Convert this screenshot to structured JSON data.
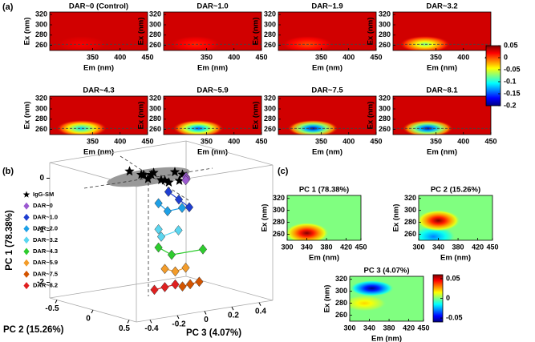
{
  "panel_labels": [
    "(a)",
    "(b)",
    "(c)"
  ],
  "chart_data": [
    {
      "type": "heatmap",
      "title": "DAR~0 (Control)",
      "xlabel": "Em (nm)",
      "ylabel": "Ex (nm)",
      "xlim": [
        272,
        450
      ],
      "ylim": [
        250,
        325
      ],
      "xticks": [
        350,
        400,
        450
      ],
      "yticks": [
        320,
        300,
        280,
        260
      ],
      "clim": [
        -0.2,
        0.05
      ],
      "background": 0.03,
      "hline": 262,
      "features": [
        {
          "x": 330,
          "y": 262,
          "value": 0.02
        }
      ]
    },
    {
      "type": "heatmap",
      "title": "DAR~1.0",
      "xlabel": "Em (nm)",
      "ylabel": "Ex (nm)",
      "xlim": [
        272,
        450
      ],
      "ylim": [
        250,
        325
      ],
      "xticks": [
        350,
        400,
        450
      ],
      "yticks": [
        320,
        300,
        280,
        260
      ],
      "clim": [
        -0.2,
        0.05
      ],
      "background": 0.03,
      "hline": 262,
      "features": [
        {
          "x": 330,
          "y": 262,
          "value": 0.01
        }
      ]
    },
    {
      "type": "heatmap",
      "title": "DAR~1.9",
      "xlabel": "Em (nm)",
      "ylabel": "Ex (nm)",
      "xlim": [
        272,
        450
      ],
      "ylim": [
        250,
        325
      ],
      "xticks": [
        350,
        400,
        450
      ],
      "yticks": [
        320,
        300,
        280,
        260
      ],
      "clim": [
        -0.2,
        0.05
      ],
      "background": 0.03,
      "hline": 262,
      "features": [
        {
          "x": 325,
          "y": 262,
          "value": 0.0
        }
      ]
    },
    {
      "type": "heatmap",
      "title": "DAR~3.2",
      "xlabel": "Em (nm)",
      "ylabel": "Ex (nm)",
      "xlim": [
        272,
        450
      ],
      "ylim": [
        250,
        325
      ],
      "xticks": [
        350,
        400,
        450
      ],
      "yticks": [
        320,
        300,
        280,
        260
      ],
      "clim": [
        -0.2,
        0.05
      ],
      "background": 0.03,
      "hline": 262,
      "features": [
        {
          "x": 330,
          "y": 262,
          "value": -0.08
        }
      ]
    },
    {
      "type": "heatmap",
      "title": "DAR~4.3",
      "xlabel": "Em (nm)",
      "ylabel": "Ex (nm)",
      "xlim": [
        272,
        450
      ],
      "ylim": [
        250,
        325
      ],
      "xticks": [
        350,
        400,
        450
      ],
      "yticks": [
        320,
        300,
        280,
        260
      ],
      "clim": [
        -0.2,
        0.05
      ],
      "background": 0.03,
      "hline": 262,
      "features": [
        {
          "x": 330,
          "y": 262,
          "value": -0.12
        }
      ]
    },
    {
      "type": "heatmap",
      "title": "DAR~5.9",
      "xlabel": "Em (nm)",
      "ylabel": "Ex (nm)",
      "xlim": [
        272,
        450
      ],
      "ylim": [
        250,
        325
      ],
      "xticks": [
        350,
        400,
        450
      ],
      "yticks": [
        320,
        300,
        280,
        260
      ],
      "clim": [
        -0.2,
        0.05
      ],
      "background": 0.03,
      "hline": 262,
      "features": [
        {
          "x": 335,
          "y": 262,
          "value": -0.15
        }
      ]
    },
    {
      "type": "heatmap",
      "title": "DAR~7.5",
      "xlabel": "Em (nm)",
      "ylabel": "Ex (nm)",
      "xlim": [
        272,
        450
      ],
      "ylim": [
        250,
        325
      ],
      "xticks": [
        350,
        400,
        450
      ],
      "yticks": [
        320,
        300,
        280,
        260
      ],
      "clim": [
        -0.2,
        0.05
      ],
      "background": 0.03,
      "hline": 262,
      "features": [
        {
          "x": 335,
          "y": 262,
          "value": -0.19
        }
      ]
    },
    {
      "type": "heatmap",
      "title": "DAR~8.1",
      "xlabel": "Em (nm)",
      "ylabel": "Ex (nm)",
      "xlim": [
        272,
        450
      ],
      "ylim": [
        250,
        325
      ],
      "xticks": [
        350,
        400,
        450
      ],
      "yticks": [
        320,
        300,
        280,
        260
      ],
      "clim": [
        -0.2,
        0.05
      ],
      "background": 0.03,
      "hline": 262,
      "features": [
        {
          "x": 335,
          "y": 262,
          "value": -0.19
        }
      ]
    },
    {
      "type": "colorbar",
      "clim": [
        -0.2,
        0.05
      ],
      "ticks": [
        0.05,
        0,
        -0.05,
        -0.1,
        -0.15,
        -0.2
      ]
    },
    {
      "type": "scatter3d",
      "pc1_label": "PC 1 (78.38%)",
      "pc2_label": "PC 2 (15.26%)",
      "pc3_label": "PC 3 (4.07%)",
      "pc1lim": [
        -2.3,
        0.3
      ],
      "pc2lim": [
        -0.6,
        0.6
      ],
      "pc3lim": [
        -0.5,
        0.5
      ],
      "pc1ticks": [
        0,
        -1,
        -2
      ],
      "pc2ticks": [
        -0.5,
        0,
        0.5
      ],
      "pc3ticks": [
        -0.4,
        -0.2,
        0,
        0.2,
        0.4
      ],
      "series": [
        {
          "name": "IgG-SM",
          "color": "#000000",
          "marker": "star",
          "values": [
            0.1,
            0.05,
            0.12,
            0.0,
            0.08,
            0.15,
            0.03,
            0.1,
            -0.02,
            0.06,
            0.11,
            0.04
          ],
          "pc2": [
            -0.25,
            -0.15,
            -0.05,
            0.05,
            0.15,
            0.2,
            -0.2,
            0.0,
            0.1,
            -0.1,
            0.1,
            0.2
          ],
          "pc3": [
            -0.1,
            -0.05,
            -0.12,
            0.0,
            -0.08,
            0.05,
            0.05,
            0.1,
            0.08,
            -0.02,
            -0.15,
            -0.05
          ]
        },
        {
          "name": "DAR~0",
          "color": "#9b59d0",
          "marker": "diamond",
          "values": [
            0.12,
            0.05,
            0.0
          ],
          "pc2": [
            0.25,
            0.2,
            0.15
          ],
          "pc3": [
            0.05,
            0.08,
            0.1
          ]
        },
        {
          "name": "DAR~1.0",
          "color": "#1f3fd1",
          "marker": "diamond",
          "values": [
            -0.2,
            -0.35,
            -0.5
          ],
          "pc2": [
            0.1,
            0.15,
            0.2
          ],
          "pc3": [
            0.0,
            0.05,
            0.1
          ]
        },
        {
          "name": "DAR~2.0",
          "color": "#1ea0e6",
          "marker": "diamond",
          "values": [
            -0.45,
            -0.6,
            -0.55
          ],
          "pc2": [
            0.0,
            0.05,
            0.1
          ],
          "pc3": [
            -0.02,
            0.02,
            0.1
          ]
        },
        {
          "name": "DAR~3.2",
          "color": "#5ad6f0",
          "marker": "diamond",
          "values": [
            -0.95,
            -1.1,
            -1.0
          ],
          "pc2": [
            0.0,
            0.0,
            0.05
          ],
          "pc3": [
            -0.02,
            0.0,
            0.1
          ]
        },
        {
          "name": "DAR~4.3",
          "color": "#2ecc2e",
          "marker": "diamond",
          "values": [
            -1.3,
            -1.45,
            -1.35
          ],
          "pc2": [
            0.0,
            0.05,
            0.2
          ],
          "pc3": [
            -0.02,
            0.05,
            0.2
          ]
        },
        {
          "name": "DAR~5.9",
          "color": "#f39c2a",
          "marker": "diamond",
          "values": [
            -1.7,
            -1.75,
            -1.68
          ],
          "pc2": [
            0.05,
            0.1,
            0.15
          ],
          "pc3": [
            0.0,
            0.05,
            0.1
          ]
        },
        {
          "name": "DAR~7.5",
          "color": "#d35400",
          "marker": "diamond",
          "values": [
            -2.0,
            -1.95,
            -1.9
          ],
          "pc2": [
            0.2,
            0.25,
            0.3
          ],
          "pc3": [
            0.05,
            0.08,
            0.12
          ]
        },
        {
          "name": "DAR~8.2",
          "color": "#e01f1f",
          "marker": "diamond",
          "values": [
            -2.1,
            -2.05,
            -2.0
          ],
          "pc2": [
            0.0,
            0.05,
            0.1
          ],
          "pc3": [
            -0.05,
            0.0,
            0.05
          ]
        }
      ]
    },
    {
      "type": "heatmap",
      "title": "PC 1 (78.38%)",
      "xlabel": "Em (nm)",
      "ylabel": "Ex (nm)",
      "xlim": [
        300,
        450
      ],
      "ylim": [
        250,
        325
      ],
      "xticks": [
        300,
        340,
        380,
        420,
        450
      ],
      "yticks": [
        320,
        300,
        280,
        260
      ],
      "clim": [
        -0.06,
        0.06
      ],
      "background": 0.0,
      "features": [
        {
          "x": 340,
          "y": 262,
          "value": 0.06
        }
      ]
    },
    {
      "type": "heatmap",
      "title": "PC 2 (15.26%)",
      "xlabel": "Em (nm)",
      "ylabel": "Ex (nm)",
      "xlim": [
        300,
        450
      ],
      "ylim": [
        250,
        325
      ],
      "xticks": [
        300,
        340,
        380,
        420,
        450
      ],
      "yticks": [
        320,
        300,
        280,
        260
      ],
      "clim": [
        -0.06,
        0.06
      ],
      "background": 0.0,
      "features": [
        {
          "x": 330,
          "y": 256,
          "value": -0.03
        },
        {
          "x": 340,
          "y": 283,
          "value": 0.06
        }
      ]
    },
    {
      "type": "heatmap",
      "title": "PC 3 (4.07%)",
      "xlabel": "Em (nm)",
      "ylabel": "Ex (nm)",
      "xlim": [
        300,
        450
      ],
      "ylim": [
        250,
        325
      ],
      "xticks": [
        300,
        340,
        380,
        420,
        450
      ],
      "yticks": [
        320,
        300,
        280,
        260
      ],
      "clim": [
        -0.06,
        0.06
      ],
      "background": 0.0,
      "features": [
        {
          "x": 330,
          "y": 280,
          "value": 0.02
        },
        {
          "x": 345,
          "y": 305,
          "value": -0.06
        }
      ]
    },
    {
      "type": "colorbar",
      "clim": [
        -0.06,
        0.06
      ],
      "ticks": [
        0.05,
        0,
        -0.05
      ]
    }
  ]
}
